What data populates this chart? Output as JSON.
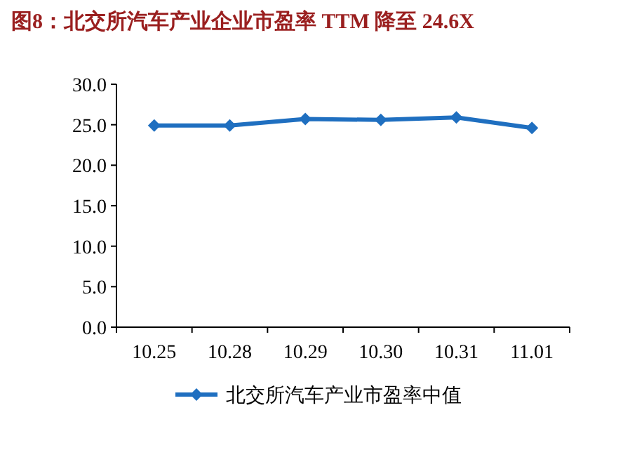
{
  "chart_data": {
    "type": "line",
    "title": "图8：北交所汽车产业企业市盈率 TTM 降至 24.6X",
    "categories": [
      "10.25",
      "10.28",
      "10.29",
      "10.30",
      "10.31",
      "11.01"
    ],
    "series": [
      {
        "name": "北交所汽车产业市盈率中值",
        "color": "#1f6fc0",
        "values": [
          24.9,
          24.9,
          25.7,
          25.6,
          25.9,
          24.6
        ]
      }
    ],
    "ylim": [
      0,
      30
    ],
    "yticks": [
      {
        "value": 0,
        "label": "0.0"
      },
      {
        "value": 5,
        "label": "5.0"
      },
      {
        "value": 10,
        "label": "10.0"
      },
      {
        "value": 15,
        "label": "15.0"
      },
      {
        "value": 20,
        "label": "20.0"
      },
      {
        "value": 25,
        "label": "25.0"
      },
      {
        "value": 30,
        "label": "30.0"
      }
    ],
    "marker": "diamond",
    "line_style": "solid",
    "legend": "bottom"
  }
}
